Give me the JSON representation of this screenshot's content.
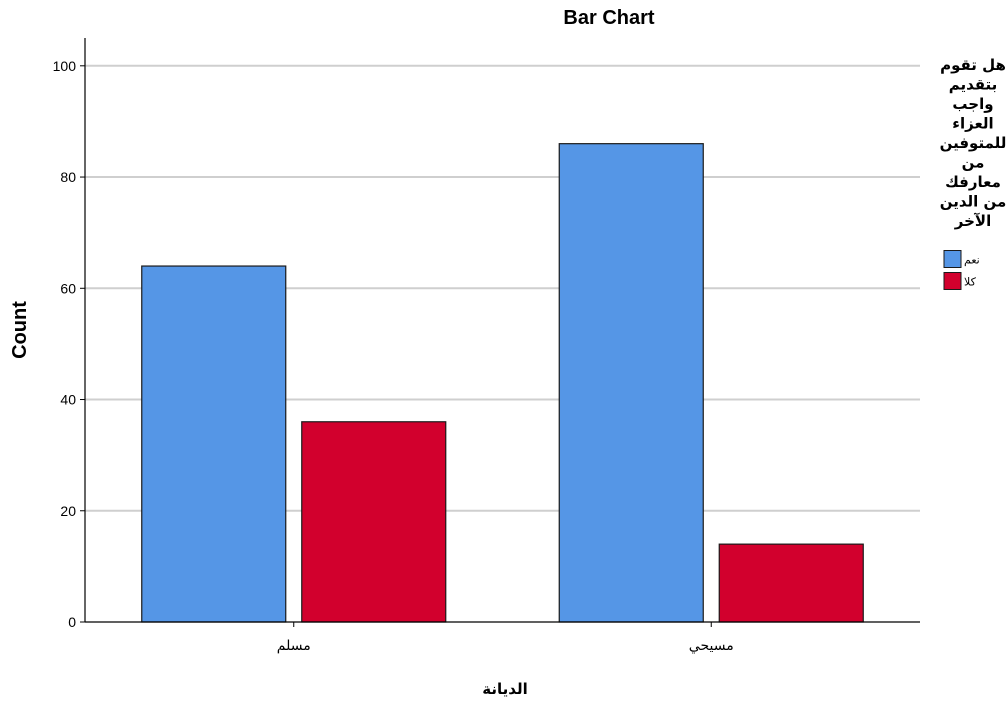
{
  "chart_data": {
    "type": "bar",
    "title": "Bar Chart",
    "xlabel": "الديانة",
    "ylabel": "Count",
    "categories": [
      "مسلم",
      "مسيحي"
    ],
    "series": [
      {
        "name": "نعم",
        "values": [
          64,
          86
        ],
        "color": "#5596e6"
      },
      {
        "name": "كلا",
        "values": [
          36,
          14
        ],
        "color": "#d2002d"
      }
    ],
    "ylim": [
      0,
      105
    ],
    "yticks": [
      0,
      20,
      40,
      60,
      80,
      100
    ],
    "grid": true,
    "legend": {
      "title_lines": [
        "هل تقوم",
        "بتقديم",
        "واجب",
        "العزاء",
        "للمتوفين",
        "من",
        "معارفك",
        "من الدين",
        "الآخر"
      ],
      "placement": "right"
    }
  }
}
